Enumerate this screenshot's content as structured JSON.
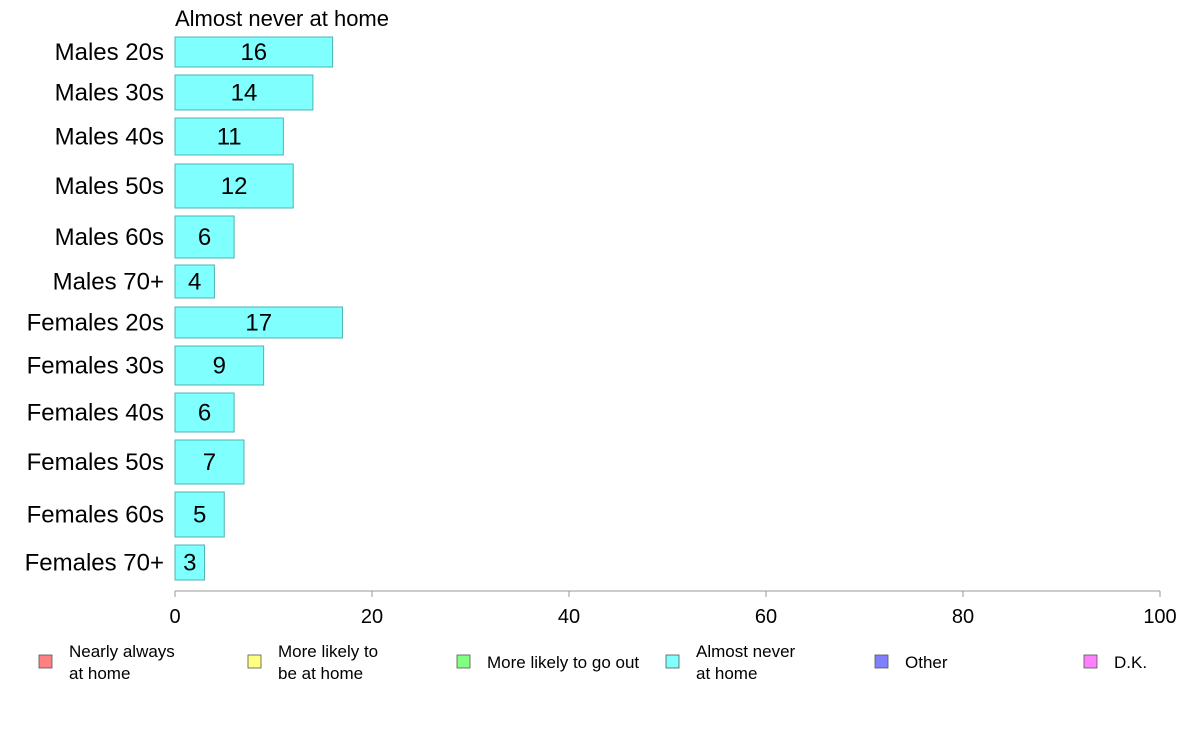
{
  "chart_data": {
    "type": "bar",
    "orientation": "horizontal",
    "title": "Almost never at home",
    "categories": [
      "Males 20s",
      "Males 30s",
      "Males 40s",
      "Males 50s",
      "Males 60s",
      "Males 70+",
      "Females 20s",
      "Females 30s",
      "Females 40s",
      "Females 50s",
      "Females 60s",
      "Females 70+"
    ],
    "values": [
      16,
      14,
      11,
      12,
      6,
      4,
      17,
      9,
      6,
      7,
      5,
      3
    ],
    "bar_color": "#80ffff",
    "bar_border_color": "#4db3b3",
    "xlim": [
      0,
      100
    ],
    "xticks": [
      0,
      20,
      40,
      60,
      80,
      100
    ],
    "grid": false,
    "legend_position": "bottom",
    "legend": [
      {
        "lines": [
          "Nearly always",
          "at home"
        ],
        "color": "#ff8080"
      },
      {
        "lines": [
          "More likely to",
          "be at home"
        ],
        "color": "#ffff80"
      },
      {
        "lines": [
          "More likely to go out"
        ],
        "color": "#80ff80"
      },
      {
        "lines": [
          "Almost never",
          "at home"
        ],
        "color": "#80ffff"
      },
      {
        "lines": [
          "Other"
        ],
        "color": "#8080ff"
      },
      {
        "lines": [
          "D.K."
        ],
        "color": "#ff80ff"
      }
    ]
  }
}
